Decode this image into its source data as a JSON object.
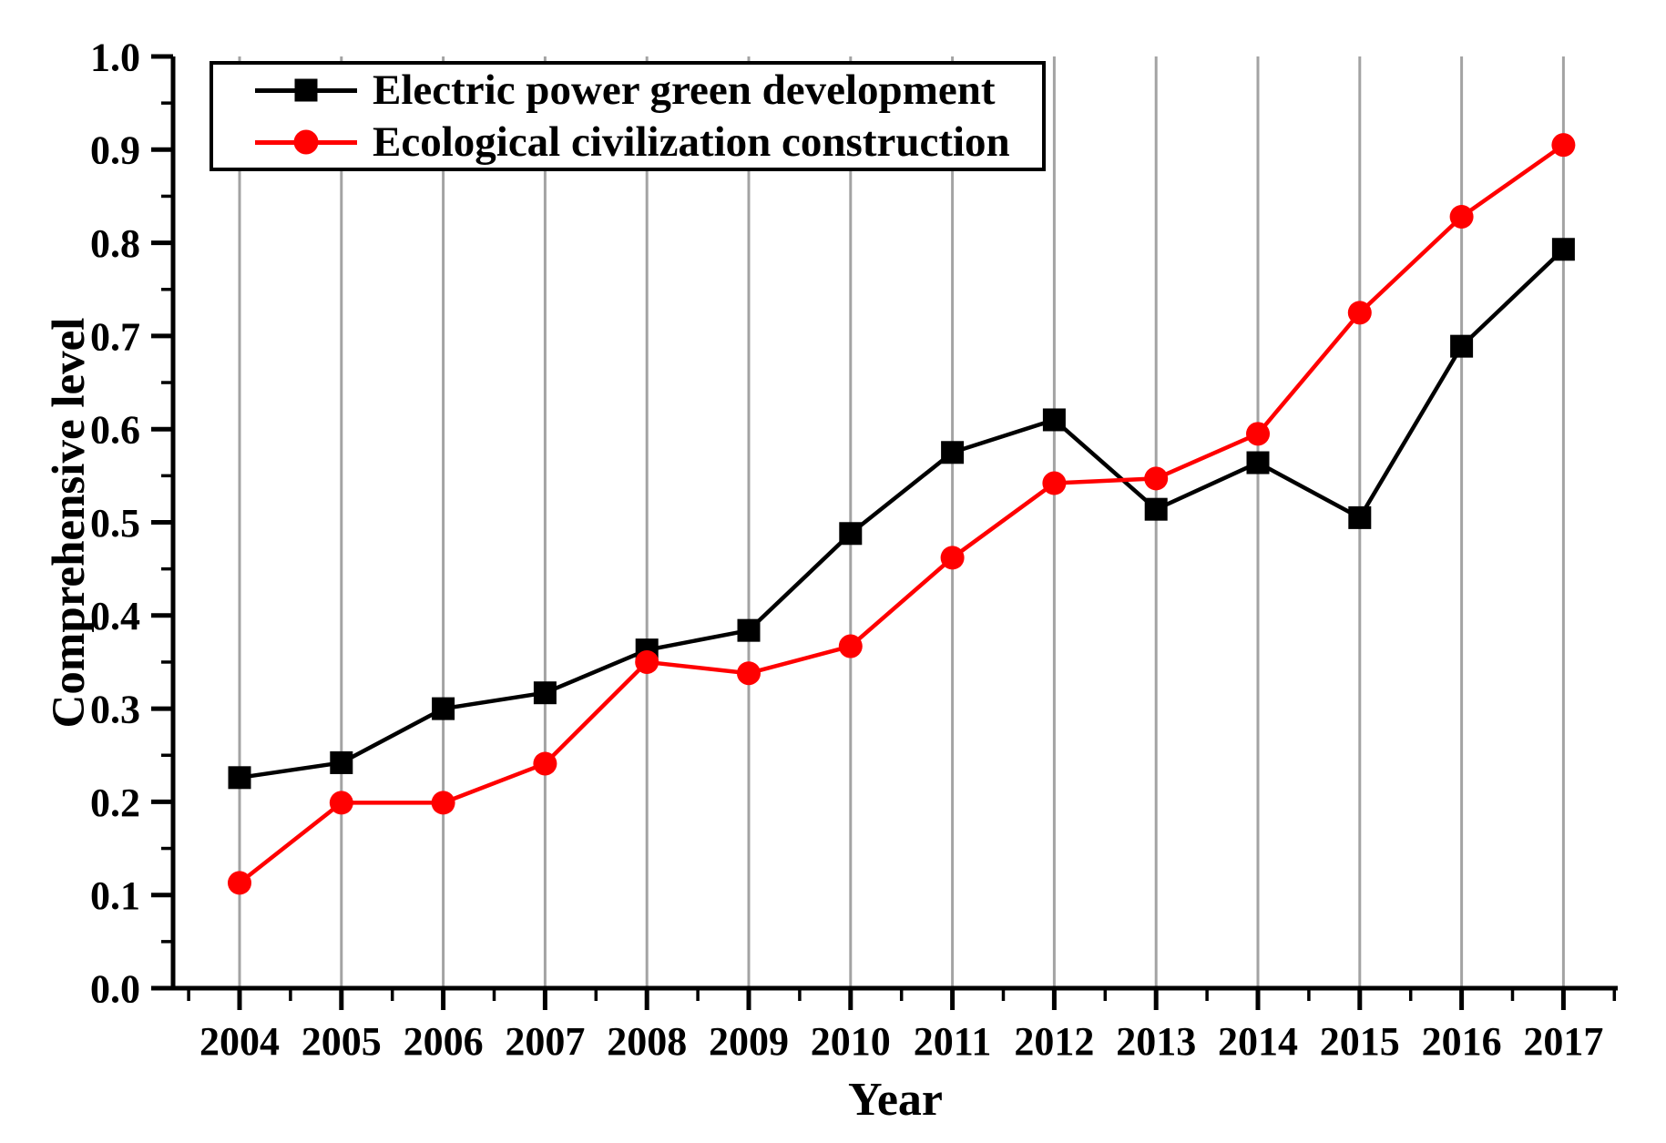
{
  "figure": {
    "background": "#ffffff"
  },
  "chart_data": {
    "type": "line",
    "title": "",
    "xlabel": "Year",
    "ylabel": "Comprehensive level",
    "categories": [
      "2004",
      "2005",
      "2006",
      "2007",
      "2008",
      "2009",
      "2010",
      "2011",
      "2012",
      "2013",
      "2014",
      "2015",
      "2016",
      "2017"
    ],
    "series": [
      {
        "name": "Electric power green development",
        "color": "#000000",
        "marker": "square",
        "values": [
          0.226,
          0.242,
          0.3,
          0.317,
          0.363,
          0.384,
          0.488,
          0.575,
          0.61,
          0.514,
          0.564,
          0.505,
          0.689,
          0.793
        ]
      },
      {
        "name": "Ecological civilization construction",
        "color": "#ff0000",
        "marker": "circle",
        "values": [
          0.113,
          0.199,
          0.199,
          0.241,
          0.35,
          0.338,
          0.367,
          0.462,
          0.542,
          0.547,
          0.595,
          0.725,
          0.828,
          0.905
        ]
      }
    ],
    "ylim": [
      0.0,
      1.0
    ],
    "y_major_tick_step": 0.1,
    "y_minor_tick_step": 0.05,
    "x_minor_ticks": "between-years",
    "y_tick_labels": [
      "0.0",
      "0.1",
      "0.2",
      "0.3",
      "0.4",
      "0.5",
      "0.6",
      "0.7",
      "0.8",
      "0.9",
      "1.0"
    ],
    "grid": "vertical-only",
    "grid_color": "#a3a3a3",
    "axis_color": "#000000",
    "legend_position": "top-left"
  }
}
